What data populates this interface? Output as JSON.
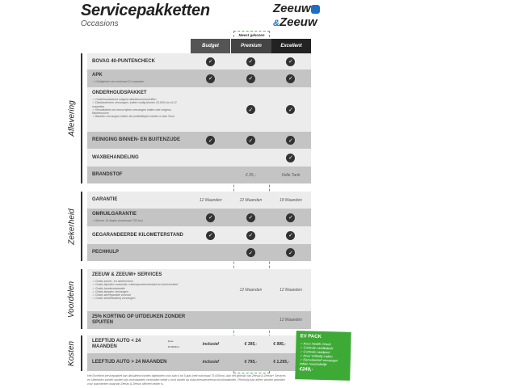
{
  "header": {
    "title": "Servicepakketten",
    "subtitle": "Occasions",
    "logo": "Zeeuw & Zeeuw",
    "logo_line1": "Zeeuw",
    "logo_amp": "&",
    "logo_line2": "Zeeuw"
  },
  "badge": "Meest gekozen",
  "columns": [
    "Budget",
    "Premium",
    "Excellent"
  ],
  "colors": {
    "header_budget": "#555555",
    "header_premium": "#444444",
    "header_excellent": "#222222",
    "accent_green": "#3daa35",
    "logo_blue": "#1d6fc5"
  },
  "sections": {
    "aflevering": "Aflevering",
    "zekerheid": "Zekerheid",
    "voordelen": "Voordelen",
    "kosten": "Kosten"
  },
  "rows": {
    "bovag": {
      "label": "BOVAG 40-PUNTENCHECK"
    },
    "apk": {
      "label": "APK",
      "notes": [
        "Geldigheid van minimaal 12 maanden"
      ]
    },
    "onderhoud": {
      "label": "ONDERHOUDSPAKKET",
      "notes": [
        "Onderhoudsbeurt volgens fabrieksvoorschriften",
        "Distributieriem vervangen, indien nodig binnen 15.000 km of 12 maanden",
        "Remblokken en remschijven vervangen indien niet volgens fabrieksnorm",
        "Banden vervangen indien de profieldiepte minder is dan 3mm"
      ]
    },
    "reiniging": {
      "label": "REINIGING BINNEN- EN BUITENZIJDE"
    },
    "wax": {
      "label": "WAXBEHANDELING"
    },
    "brandstof": {
      "label": "BRANDSTOF",
      "premium": "€ 25,-",
      "excellent": "Volle Tank"
    },
    "garantie": {
      "label": "GARANTIE",
      "budget": "12 Maanden",
      "premium": "12 Maanden",
      "excellent": "18 Maanden"
    },
    "omruil": {
      "label": "OMRUILGARANTIE",
      "notes": [
        "Binnen 14 dagen (maximaal 750 km)"
      ]
    },
    "kilometer": {
      "label": "GEGARANDEERDE KILOMETERSTAND"
    },
    "pechhulp": {
      "label": "PECHHULP"
    },
    "services": {
      "label": "ZEEUW & ZEEUW+ SERVICES",
      "notes": [
        "Gratis zomer- en wintercheck",
        "Gratis bijvullen motorolie, ruitensproeiervloeistof en koelvloeistof",
        "Gratis bandenreparatie",
        "Gratis lampjes vervangen",
        "Gratis sterreparatie voorruit",
        "Gratis sleutelbatterij vervangen"
      ],
      "premium": "12 Maanden",
      "excellent": "12 Maanden"
    },
    "korting": {
      "label": "25% KORTING OP UITDEUKEN ZONDER SPUITEN",
      "excellent": "12 Maanden"
    },
    "lt24": {
      "label": "LEEFTIJD AUTO < 24 MAANDEN",
      "sublabel": "(max. 30.000km)",
      "budget": "inclusief",
      "premium": "€ 395,-",
      "excellent": "€ 995,-"
    },
    "gt24": {
      "label": "LEEFTIJD AUTO > 24 MAANDEN",
      "budget": "inclusief",
      "premium": "€ 795,-",
      "excellent": "€ 1.295,-"
    }
  },
  "ev_pack": {
    "title": "EV PACK",
    "items": [
      "Accu Health Check",
      "Controle Laadkabels",
      "Controle Laadpunt",
      "Accu Volledig Laden",
      "Remvloeistof vervangen indien noodzakelijk"
    ],
    "price": "€249,-"
  },
  "footer": "Het Excellent servicepakket kan uitsluitend worden afgesloten voor auto's tot 5 jaar (met maximaal 75.000km). Aan het gebruik van Zeeuw & Zeeuw+ Services en Uitdeuken zonder spuiten zijn voorwaarden verbonden welke u kunt vinden op www.zeeuwenzeeuw.nl/voorwaarden. Pechhulp kan alleen worden geboden voor automerken waarvan Zeeuw & Zeeuw officieel dealer is."
}
